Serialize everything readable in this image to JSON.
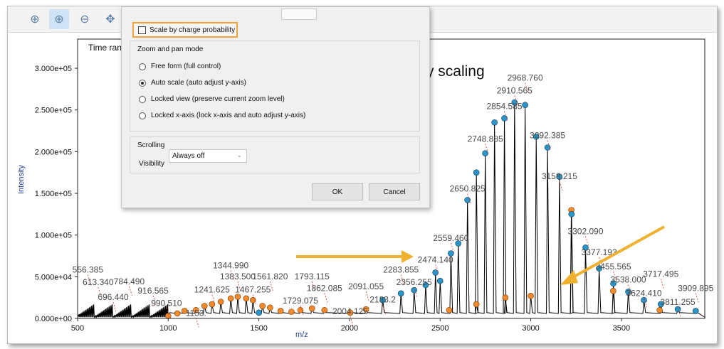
{
  "toolbar": {
    "buttons": [
      {
        "icon": "zoom-fit-icon",
        "glyph": "⊕"
      },
      {
        "icon": "zoom-in-icon",
        "glyph": "⊕"
      },
      {
        "icon": "zoom-out-icon",
        "glyph": "⊖"
      },
      {
        "icon": "pan-icon",
        "glyph": "✥"
      }
    ]
  },
  "plot": {
    "time_label": "Time ran",
    "annotation": "No charge probability scaling",
    "colors": {
      "curve": "#000000",
      "blue_marker": "#2a95c9",
      "orange_marker": "#f08a2c",
      "arrow": "#f0b030",
      "label_line": "#e03030"
    }
  },
  "dialog": {
    "scale_checkbox_label": "Scale by charge probability",
    "zoom_group_title": "Zoom and pan mode",
    "options": [
      "Free form (full control)",
      "Auto scale (auto adjust y-axis)",
      "Locked view (preserve current zoom level)",
      "Locked x-axis (lock x-axis and auto adjust y-axis)"
    ],
    "selected_option_index": 1,
    "scroll_group_title": "Scrolling",
    "visibility_label": "Visibility",
    "visibility_value": "Always off",
    "ok_label": "OK",
    "cancel_label": "Cancel"
  },
  "chart_data": {
    "type": "line",
    "xlabel": "m/z",
    "ylabel": "Intensity",
    "xlim": [
      500,
      3960
    ],
    "ylim": [
      0,
      335000
    ],
    "x_ticks": [
      500,
      1000,
      1500,
      2000,
      2500,
      3000,
      3500
    ],
    "y_ticks": [
      0,
      50000,
      100000,
      150000,
      200000,
      250000,
      300000
    ],
    "y_tick_labels": [
      "0.000e+00",
      "5.000e+04",
      "1.000e+05",
      "1.500e+05",
      "2.000e+05",
      "2.500e+05",
      "3.000e+05"
    ],
    "blue_peaks": [
      [
        1500,
        7000
      ],
      [
        2183.2,
        22000
      ],
      [
        2283.855,
        30000
      ],
      [
        2356.255,
        34000
      ],
      [
        2420,
        40000
      ],
      [
        2474.14,
        55000
      ],
      [
        2500,
        45000
      ],
      [
        2559.46,
        78000
      ],
      [
        2600,
        90000
      ],
      [
        2650.825,
        142000
      ],
      [
        2700,
        175000
      ],
      [
        2748.885,
        198000
      ],
      [
        2800,
        235000
      ],
      [
        2854.585,
        240000
      ],
      [
        2910.565,
        259000
      ],
      [
        2968.76,
        256000
      ],
      [
        3030,
        218000
      ],
      [
        3092.385,
        205000
      ],
      [
        3158.215,
        170000
      ],
      [
        3225,
        125000
      ],
      [
        3302.09,
        85000
      ],
      [
        3377.193,
        60000
      ],
      [
        3455.565,
        42000
      ],
      [
        3538.0,
        32000
      ],
      [
        3624.41,
        22000
      ],
      [
        3717.495,
        17000
      ],
      [
        3811.255,
        11000
      ],
      [
        3909.895,
        9000
      ]
    ],
    "orange_peaks": [
      [
        1000,
        3000
      ],
      [
        1050,
        6000
      ],
      [
        1090,
        9000
      ],
      [
        1153,
        10000
      ],
      [
        1200,
        15000
      ],
      [
        1241.625,
        17000
      ],
      [
        1290,
        20000
      ],
      [
        1344.99,
        24000
      ],
      [
        1383.5,
        26000
      ],
      [
        1430,
        24000
      ],
      [
        1467.255,
        22000
      ],
      [
        1520,
        15000
      ],
      [
        1561.82,
        13000
      ],
      [
        1620,
        9000
      ],
      [
        1680,
        8000
      ],
      [
        1729.075,
        10000
      ],
      [
        1793.115,
        12000
      ],
      [
        1862.085,
        10000
      ],
      [
        2004.125,
        7000
      ],
      [
        2091.055,
        11000
      ],
      [
        2550,
        10000
      ],
      [
        2700,
        17000
      ],
      [
        2860,
        25000
      ],
      [
        3000,
        27000
      ],
      [
        3224,
        130000
      ],
      [
        3455,
        33000
      ],
      [
        3711,
        10000
      ]
    ],
    "labels": [
      {
        "text": "556.385",
        "x": 556.385,
        "y": 55000
      },
      {
        "text": "613.340",
        "x": 613.34,
        "y": 40000
      },
      {
        "text": "696.440",
        "x": 696.44,
        "y": 22000
      },
      {
        "text": "784.490",
        "x": 784.49,
        "y": 41000
      },
      {
        "text": "916.565",
        "x": 916.565,
        "y": 30000
      },
      {
        "text": "990.510",
        "x": 990.51,
        "y": 15000
      },
      {
        "text": "1153.",
        "x": 1153,
        "y": 3000
      },
      {
        "text": "1241.625",
        "x": 1241.625,
        "y": 31000
      },
      {
        "text": "1344.990",
        "x": 1344.99,
        "y": 60000
      },
      {
        "text": "1383.500",
        "x": 1383.5,
        "y": 47000
      },
      {
        "text": "1467.255",
        "x": 1467.255,
        "y": 31000
      },
      {
        "text": "1561.820",
        "x": 1561.82,
        "y": 47000
      },
      {
        "text": "1729.075",
        "x": 1729.075,
        "y": 18000
      },
      {
        "text": "1793.115",
        "x": 1793.115,
        "y": 47000
      },
      {
        "text": "1862.085",
        "x": 1862.085,
        "y": 33000
      },
      {
        "text": "2004.125",
        "x": 2004.125,
        "y": 5000
      },
      {
        "text": "2091.055",
        "x": 2091.055,
        "y": 35000
      },
      {
        "text": "2183.2",
        "x": 2183.2,
        "y": 19000
      },
      {
        "text": "2283.855",
        "x": 2283.855,
        "y": 55000
      },
      {
        "text": "2356.255",
        "x": 2356.255,
        "y": 40000
      },
      {
        "text": "2474.140",
        "x": 2474.14,
        "y": 67000
      },
      {
        "text": "2559.460",
        "x": 2559.46,
        "y": 93000
      },
      {
        "text": "2650.825",
        "x": 2650.825,
        "y": 152000
      },
      {
        "text": "2748.885",
        "x": 2748.885,
        "y": 212000
      },
      {
        "text": "2854.585",
        "x": 2854.585,
        "y": 251000
      },
      {
        "text": "2910.565",
        "x": 2910.565,
        "y": 270000
      },
      {
        "text": "2968.760",
        "x": 2968.76,
        "y": 285000
      },
      {
        "text": "3092.385",
        "x": 3092.385,
        "y": 216000
      },
      {
        "text": "3158.215",
        "x": 3158.215,
        "y": 167000
      },
      {
        "text": "3302.090",
        "x": 3302.09,
        "y": 101000
      },
      {
        "text": "3377.193",
        "x": 3377.193,
        "y": 76000
      },
      {
        "text": "3455.565",
        "x": 3455.565,
        "y": 59000
      },
      {
        "text": "3538.000",
        "x": 3538.0,
        "y": 43000
      },
      {
        "text": "3624.410",
        "x": 3624.41,
        "y": 27000
      },
      {
        "text": "3717.495",
        "x": 3717.495,
        "y": 50000
      },
      {
        "text": "3811.255",
        "x": 3811.255,
        "y": 16000
      },
      {
        "text": "3909.895",
        "x": 3909.895,
        "y": 33000
      }
    ]
  }
}
